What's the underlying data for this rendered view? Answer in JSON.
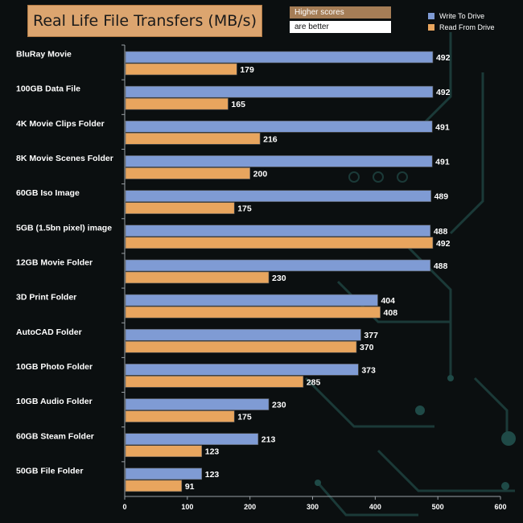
{
  "notes": {
    "line1": "Higher scores",
    "line2": "are better"
  },
  "chart_data": {
    "type": "bar",
    "orientation": "horizontal",
    "title": "Real Life File Transfers (MB/s)",
    "categories": [
      "BluRay Movie",
      "100GB Data File",
      "4K Movie Clips Folder",
      "8K Movie Scenes Folder",
      "60GB Iso Image",
      "5GB (1.5bn pixel) image",
      "12GB Movie Folder",
      "3D Print Folder",
      "AutoCAD Folder",
      "10GB Photo Folder",
      "10GB Audio Folder",
      "60GB Steam Folder",
      "50GB File Folder"
    ],
    "series": [
      {
        "name": "Write To  Drive",
        "color": "#7f9bd4",
        "values": [
          492,
          492,
          491,
          491,
          489,
          488,
          488,
          404,
          377,
          373,
          230,
          213,
          123
        ]
      },
      {
        "name": "Read From  Drive",
        "color": "#e8a55e",
        "values": [
          179,
          165,
          216,
          200,
          175,
          492,
          230,
          408,
          370,
          285,
          175,
          123,
          91
        ]
      }
    ],
    "xlim": [
      0,
      600
    ],
    "xticks": [
      0,
      100,
      200,
      300,
      400,
      500,
      600
    ],
    "legend_position": "top-right",
    "grid": false
  }
}
